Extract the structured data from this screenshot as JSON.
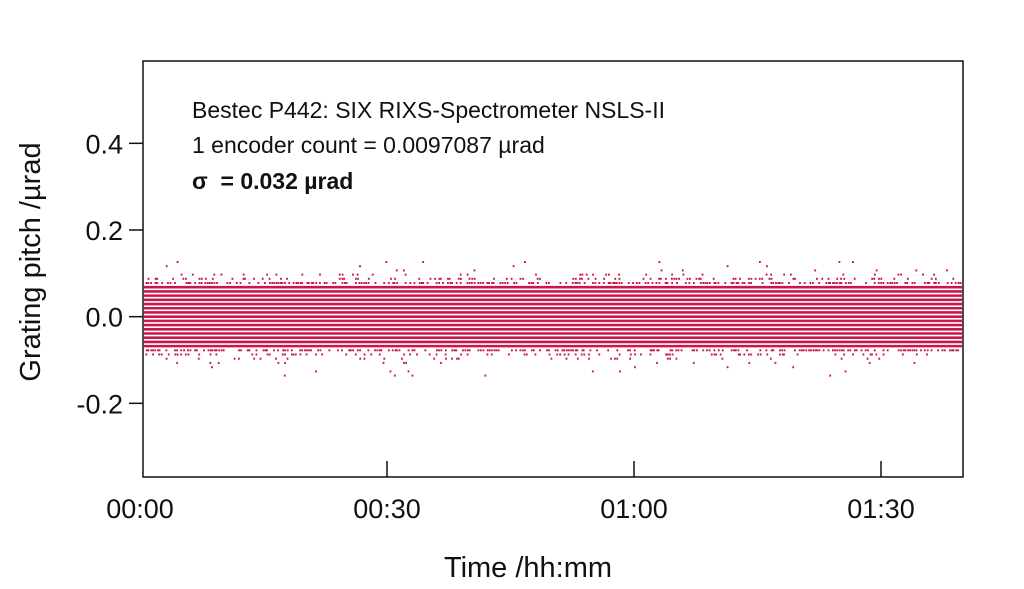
{
  "chart_data": {
    "type": "scatter",
    "title": "",
    "xlabel": "Time /hh:mm",
    "ylabel": "Grating pitch /µrad",
    "x_unit": "minutes",
    "xlim": [
      0,
      100
    ],
    "ylim": [
      -0.37,
      0.59
    ],
    "x_ticks": [
      {
        "value": 0,
        "label": "00:00"
      },
      {
        "value": 30,
        "label": "00:30"
      },
      {
        "value": 60,
        "label": "01:00"
      },
      {
        "value": 90,
        "label": "01:30"
      }
    ],
    "y_ticks": [
      {
        "value": 0.4,
        "label": "0.4"
      },
      {
        "value": 0.2,
        "label": "0.2"
      },
      {
        "value": 0.0,
        "label": "0.0"
      },
      {
        "value": -0.2,
        "label": "-0.2"
      }
    ],
    "grid": false,
    "marker_color": "#c8174a",
    "series": [
      {
        "name": "",
        "quantization_step": 0.0097087,
        "core_range": [
          -0.068,
          0.068
        ],
        "extreme_range": [
          -0.136,
          0.126
        ],
        "sigma": 0.032
      }
    ],
    "annotations": [
      {
        "text": "Bestec P442: SIX RIXS-Spectrometer NSLS-II",
        "bold": false
      },
      {
        "text": "1 encoder count = 0.0097087 µrad",
        "bold": false
      },
      {
        "text": "σ  = 0.032 µrad",
        "bold": true
      }
    ]
  }
}
